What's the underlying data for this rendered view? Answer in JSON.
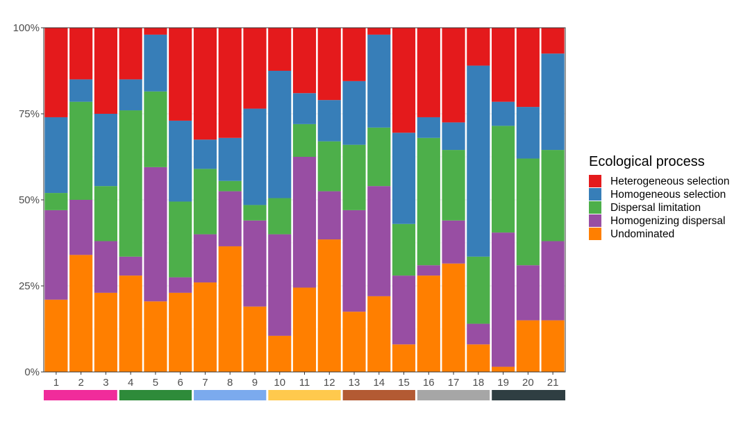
{
  "chart_data": {
    "type": "bar",
    "stacked": true,
    "normalized": true,
    "title": "",
    "xlabel": "",
    "ylabel": "",
    "ylim": [
      0,
      100
    ],
    "yticks": [
      "0%",
      "25%",
      "50%",
      "75%",
      "100%"
    ],
    "grid": true,
    "legend_position": "right",
    "legend_title": "Ecological process",
    "categories": [
      "1",
      "2",
      "3",
      "4",
      "5",
      "6",
      "7",
      "8",
      "9",
      "10",
      "11",
      "12",
      "13",
      "14",
      "15",
      "16",
      "17",
      "18",
      "19",
      "20",
      "21"
    ],
    "series": [
      {
        "name": "Undominated",
        "color": "#FF7F00",
        "values": [
          21,
          34,
          23,
          28,
          20.5,
          23,
          26,
          36.5,
          19,
          10.5,
          24.5,
          38.5,
          17.5,
          22,
          8,
          28,
          31.5,
          8,
          1.5,
          15,
          15
        ]
      },
      {
        "name": "Homogenizing dispersal",
        "color": "#984EA3",
        "values": [
          26,
          16,
          15,
          5.5,
          39,
          4.5,
          14,
          16,
          25,
          29.5,
          38,
          14,
          29.5,
          32,
          20,
          3,
          12.5,
          6,
          39,
          16,
          23
        ]
      },
      {
        "name": "Dispersal limitation",
        "color": "#4DAF4A",
        "values": [
          5,
          28.5,
          16,
          42.5,
          22,
          22,
          19,
          3,
          4.5,
          10.5,
          9.5,
          14.5,
          19,
          17,
          15,
          37,
          20.5,
          19.5,
          31,
          31,
          26.5
        ]
      },
      {
        "name": "Homogeneous selection",
        "color": "#377EB8",
        "values": [
          22,
          6.5,
          21,
          9,
          16.5,
          23.5,
          8.5,
          12.5,
          28,
          37,
          9,
          12,
          18.5,
          27,
          26.5,
          6,
          8,
          55.5,
          7,
          15,
          28
        ]
      },
      {
        "name": "Heterogeneous selection",
        "color": "#E41A1C",
        "values": [
          26,
          15,
          25,
          15,
          2,
          27,
          32.5,
          32,
          23.5,
          12.5,
          19,
          21,
          15.5,
          2,
          30.5,
          26,
          27.5,
          11,
          21.5,
          23,
          7.5
        ]
      }
    ],
    "legend_order": [
      "Heterogeneous selection",
      "Homogeneous selection",
      "Dispersal limitation",
      "Homogenizing dispersal",
      "Undominated"
    ],
    "group_bar": {
      "groups": [
        {
          "columns": [
            1,
            3
          ],
          "color": "#F02C9B"
        },
        {
          "columns": [
            4,
            6
          ],
          "color": "#2E8B3A"
        },
        {
          "columns": [
            7,
            9
          ],
          "color": "#7BAAEE"
        },
        {
          "columns": [
            10,
            12
          ],
          "color": "#FFC94D"
        },
        {
          "columns": [
            13,
            15
          ],
          "color": "#B35A33"
        },
        {
          "columns": [
            16,
            18
          ],
          "color": "#A6A6A6"
        },
        {
          "columns": [
            19,
            21
          ],
          "color": "#2F3E42"
        }
      ]
    }
  }
}
